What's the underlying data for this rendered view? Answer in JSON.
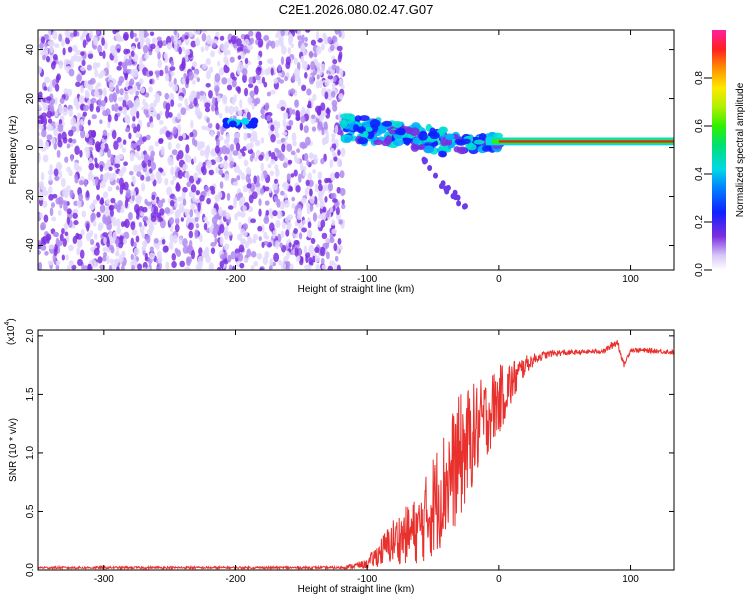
{
  "title": "C2E1.2026.080.02.47.G07",
  "colors": {
    "snr_line": "#e8302d",
    "axis": "#000000",
    "background": "#ffffff",
    "spectrogram_noise": "#7b2fe0",
    "spectrogram_peak": "#e0202a"
  },
  "chart_data": [
    {
      "type": "heatmap",
      "title": "C2E1.2026.080.02.47.G07",
      "xlabel": "Height of straight line (km)",
      "ylabel": "Frequency (Hz)",
      "xlim": [
        -350,
        133
      ],
      "ylim": [
        -50,
        48
      ],
      "x_ticks": [
        -300,
        -200,
        -100,
        0,
        100
      ],
      "y_ticks": [
        -40,
        -20,
        0,
        20,
        40
      ],
      "x_tick_labels": [
        "-300",
        "-200",
        "-100",
        "0",
        "100"
      ],
      "y_tick_labels": [
        "-40",
        "-20",
        "0",
        "20",
        "40"
      ],
      "colorbar": {
        "label": "Normalized spectral amplitude",
        "range": [
          0,
          1
        ],
        "ticks": [
          0.0,
          0.2,
          0.4,
          0.6,
          0.8
        ],
        "tick_labels": [
          "0.0",
          "0.2",
          "0.4",
          "0.6",
          "0.8"
        ]
      },
      "regions": [
        {
          "name": "noise",
          "x_range": [
            -350,
            -118
          ],
          "freq_range": [
            -50,
            48
          ],
          "amplitude": 0.15
        },
        {
          "name": "signal-onset",
          "x": [
            -210,
            -185
          ],
          "freq": 10,
          "amplitude": 0.4
        },
        {
          "name": "tracking",
          "x": [
            -118,
            -20
          ],
          "freq": [
            10,
            2
          ],
          "amplitude": 0.5
        },
        {
          "name": "locked",
          "x_range": [
            0,
            133
          ],
          "freq": 2.5,
          "amplitude": 1.0
        }
      ],
      "ridge": {
        "x": [
          -118,
          -100,
          -80,
          -60,
          -40,
          -30,
          -20,
          -10,
          0,
          50,
          100,
          133
        ],
        "freq": [
          8,
          7,
          6,
          4,
          2,
          1.5,
          1.5,
          2,
          2.5,
          2.5,
          2.5,
          2.5
        ]
      }
    },
    {
      "type": "line",
      "xlabel": "Height of straight line (km)",
      "ylabel": "SNR (10 * v/v)",
      "y_multiplier_label": "(x10",
      "y_multiplier_exp": "4",
      "xlim": [
        -350,
        133
      ],
      "ylim": [
        0,
        2.05
      ],
      "x_ticks": [
        -300,
        -200,
        -100,
        0,
        100
      ],
      "y_ticks": [
        0,
        0.5,
        1.0,
        1.5,
        2.0
      ],
      "x_tick_labels": [
        "-300",
        "-200",
        "-100",
        "0",
        "100"
      ],
      "y_tick_labels": [
        "0.0",
        "0.5",
        "1.0",
        "1.5",
        "2.0"
      ],
      "series": [
        {
          "x": [
            -350,
            -300,
            -200,
            -150,
            -120,
            -100,
            -90,
            -80,
            -70,
            -60,
            -50,
            -40,
            -30,
            -20,
            -10,
            0,
            10,
            20,
            30,
            40,
            60,
            80,
            90,
            95,
            100,
            120,
            133
          ],
          "y": [
            0.02,
            0.02,
            0.02,
            0.02,
            0.02,
            0.05,
            0.15,
            0.25,
            0.3,
            0.35,
            0.55,
            0.75,
            0.95,
            1.15,
            1.3,
            1.45,
            1.6,
            1.75,
            1.82,
            1.85,
            1.86,
            1.87,
            1.95,
            1.75,
            1.88,
            1.87,
            1.86
          ],
          "noise_amplitude": [
            0.01,
            0.01,
            0.01,
            0.01,
            0.01,
            0.04,
            0.12,
            0.2,
            0.25,
            0.3,
            0.45,
            0.5,
            0.55,
            0.45,
            0.35,
            0.3,
            0.2,
            0.08,
            0.04,
            0.03,
            0.02,
            0.02,
            0.04,
            0.02,
            0.02,
            0.02,
            0.02
          ]
        }
      ]
    }
  ]
}
